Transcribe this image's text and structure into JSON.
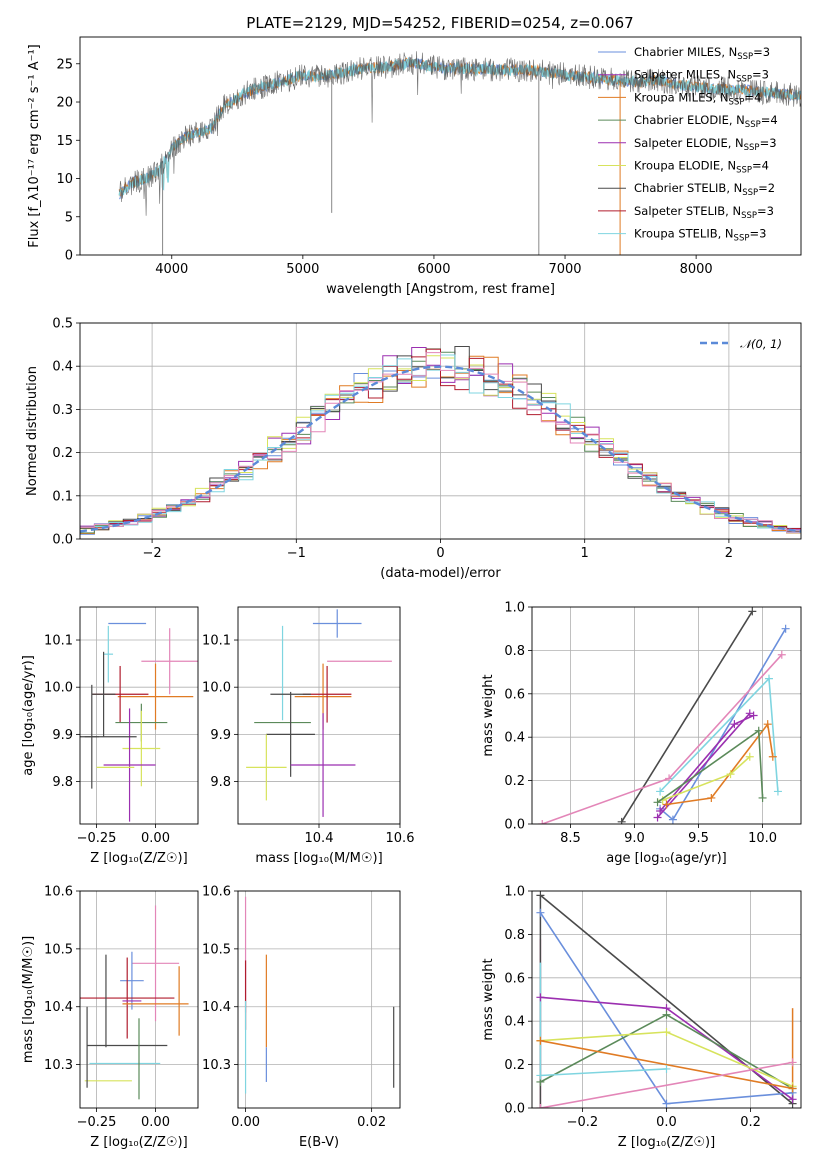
{
  "figure_title": "PLATE=2129, MJD=54252, FIBERID=0254, z=0.067",
  "colors": {
    "chabrier_miles": "#6a8fdc",
    "salpeter_miles": "#9b2fb0",
    "kroupa_miles": "#e07b24",
    "chabrier_elodie": "#5b8a5a",
    "salpeter_elodie": "#9b2fb0",
    "kroupa_elodie": "#d7e35c",
    "chabrier_stelib": "#4a4a4a",
    "salpeter_stelib": "#b01c2e",
    "kroupa_stelib": "#7fd5e0",
    "pink": "#e386b8",
    "normal_curve": "#5b8ad8"
  },
  "chart_data": [
    {
      "id": "spectrum",
      "type": "line",
      "title": "PLATE=2129, MJD=54252, FIBERID=0254, z=0.067",
      "xlabel": "wavelength [Angstrom, rest frame]",
      "ylabel": "Flux [f_λ10⁻¹⁷ erg cm⁻² s⁻¹ A⁻¹]",
      "xlim": [
        3300,
        8800
      ],
      "ylim": [
        0,
        28.5
      ],
      "xticks": [
        4000,
        5000,
        6000,
        7000,
        8000
      ],
      "yticks": [
        0,
        5,
        10,
        15,
        20,
        25
      ],
      "grid": false,
      "legend_position": "right",
      "legend": [
        "Chabrier MILES, N_SSP=3",
        "Salpeter MILES, N_SSP=3",
        "Kroupa MILES, N_SSP=4",
        "Chabrier ELODIE, N_SSP=4",
        "Salpeter ELODIE, N_SSP=3",
        "Kroupa ELODIE, N_SSP=4",
        "Chabrier STELIB, N_SSP=2",
        "Salpeter STELIB, N_SSP=3",
        "Kroupa STELIB, N_SSP=3"
      ],
      "data_envelope": {
        "x": [
          3600,
          3700,
          3800,
          3900,
          4000,
          4100,
          4200,
          4300,
          4400,
          4500,
          4600,
          4700,
          4800,
          4900,
          5000,
          5100,
          5200,
          5300,
          5400,
          5500,
          5600,
          5700,
          5800,
          5900,
          6000,
          6100,
          6200,
          6300,
          6400,
          6500,
          6600,
          6700,
          6800,
          6900,
          7000,
          7100,
          7200,
          7300,
          7400,
          7500,
          7600,
          7700,
          7800,
          7900,
          8000,
          8100,
          8200,
          8300,
          8400,
          8500,
          8600,
          8700,
          8800
        ],
        "y": [
          8,
          9.5,
          10,
          11,
          14,
          15.5,
          16,
          16.5,
          19.5,
          20.5,
          21.5,
          22,
          22.5,
          23,
          23.5,
          23.3,
          23.5,
          23.8,
          24.2,
          24.5,
          24.5,
          24.8,
          25.2,
          25,
          24.5,
          24.4,
          24.4,
          24.3,
          24.3,
          24.2,
          24.2,
          24.2,
          24,
          23.8,
          23.6,
          23.4,
          23.2,
          23,
          22.8,
          22.6,
          22.7,
          22.8,
          22.5,
          22.2,
          22,
          21.7,
          21.8,
          21.6,
          21.5,
          21.3,
          21.2,
          21.0,
          20.8
        ]
      },
      "observed_range": [
        3600,
        7420
      ]
    },
    {
      "id": "residuals",
      "type": "line",
      "xlabel": "(data-model)/error",
      "ylabel": "Normed distribution",
      "xlim": [
        -2.5,
        2.5
      ],
      "ylim": [
        0,
        0.5
      ],
      "xticks": [
        -2,
        -1,
        0,
        1,
        2
      ],
      "yticks": [
        0.0,
        0.1,
        0.2,
        0.3,
        0.4,
        0.5
      ],
      "grid": true,
      "legend_position": "top-right",
      "legend": [
        "𝒩(0, 1)"
      ]
    },
    {
      "id": "age_vs_Z",
      "type": "scatter",
      "xlabel": "Z [log₁₀(Z/Z☉)]",
      "ylabel": "age  [log₁₀(age/yr)]",
      "xlim": [
        -0.32,
        0.18
      ],
      "ylim": [
        9.71,
        10.17
      ],
      "xticks": [
        -0.25,
        0.0
      ],
      "yticks": [
        9.8,
        9.9,
        10.0,
        10.1
      ],
      "grid": true,
      "points": [
        {
          "series": "Chabrier MILES",
          "x": -0.12,
          "y": 10.135,
          "xerr": 0.08,
          "yerr": 0.0
        },
        {
          "series": "Kroupa MILES",
          "x": 0.0,
          "y": 9.98,
          "xerr": 0.16,
          "yerr": 0.07
        },
        {
          "series": "Pink",
          "x": 0.06,
          "y": 10.055,
          "xerr": 0.12,
          "yerr": 0.07
        },
        {
          "series": "Salpeter STELIB",
          "x": -0.15,
          "y": 9.985,
          "xerr": 0.12,
          "yerr": 0.06
        },
        {
          "series": "Kroupa STELIB",
          "x": -0.2,
          "y": 10.07,
          "xerr": 0.02,
          "yerr": 0.06
        },
        {
          "series": "Chabrier STELIB",
          "x": -0.22,
          "y": 9.985,
          "xerr": 0.05,
          "yerr": 0.09
        },
        {
          "series": "Chabrier ELODIE",
          "x": -0.06,
          "y": 9.925,
          "xerr": 0.11,
          "yerr": 0.04
        },
        {
          "series": "Kroupa ELODIE",
          "x": -0.06,
          "y": 9.87,
          "xerr": 0.08,
          "yerr": 0.08
        },
        {
          "series": "Salpeter ELODIE",
          "x": -0.11,
          "y": 9.835,
          "xerr": 0.11,
          "yerr": 0.12
        },
        {
          "series": "Chabrier STELIB 2",
          "x": -0.27,
          "y": 9.895,
          "xerr": 0.03,
          "yerr": 0.11
        },
        {
          "series": "Chabrier STELIB 3",
          "x": -0.24,
          "y": 9.895,
          "xerr": 0.16,
          "yerr": 0.0
        },
        {
          "series": "Kroupa ELODIE 2",
          "x": -0.17,
          "y": 9.83,
          "xerr": 0.08,
          "yerr": 0.0
        }
      ]
    },
    {
      "id": "age_vs_mass",
      "type": "scatter",
      "xlabel": "mass [log₁₀(M/M☉)]",
      "ylabel": "",
      "xlim": [
        10.2,
        10.6
      ],
      "ylim": [
        9.71,
        10.17
      ],
      "xticks": [
        10.4,
        10.6
      ],
      "yticks": [
        9.8,
        9.9,
        10.0,
        10.1
      ],
      "grid": true,
      "points": [
        {
          "series": "Chabrier MILES",
          "x": 10.445,
          "y": 10.135,
          "xerr": 0.06,
          "yerr": 0.03
        },
        {
          "series": "Kroupa STELIB",
          "x": 10.31,
          "y": 10.03,
          "xerr": 0.0,
          "yerr": 0.1
        },
        {
          "series": "Pink",
          "x": 10.5,
          "y": 10.055,
          "xerr": 0.08,
          "yerr": 0.0
        },
        {
          "series": "Kroupa MILES",
          "x": 10.41,
          "y": 9.98,
          "xerr": 0.07,
          "yerr": 0.07
        },
        {
          "series": "Salpeter STELIB",
          "x": 10.42,
          "y": 9.985,
          "xerr": 0.06,
          "yerr": 0.06
        },
        {
          "series": "Chabrier STELIB",
          "x": 10.33,
          "y": 9.985,
          "xerr": 0.05,
          "yerr": 0.0
        },
        {
          "series": "Chabrier ELODIE",
          "x": 10.31,
          "y": 9.925,
          "xerr": 0.07,
          "yerr": 0.0
        },
        {
          "series": "Chabrier STELIB 2",
          "x": 10.33,
          "y": 9.9,
          "xerr": 0.06,
          "yerr": 0.09
        },
        {
          "series": "Kroupa ELODIE",
          "x": 10.27,
          "y": 9.83,
          "xerr": 0.05,
          "yerr": 0.07
        },
        {
          "series": "Salpeter ELODIE",
          "x": 10.41,
          "y": 9.835,
          "xerr": 0.08,
          "yerr": 0.11
        }
      ]
    },
    {
      "id": "mass_weight_vs_age",
      "type": "line",
      "xlabel": "age  [log₁₀(age/yr)]",
      "ylabel": "mass weight",
      "xlim": [
        8.2,
        10.3
      ],
      "ylim": [
        0.0,
        1.0
      ],
      "xticks": [
        8.5,
        9.0,
        9.5,
        10.0
      ],
      "yticks": [
        0.0,
        0.2,
        0.4,
        0.6,
        0.8,
        1.0
      ],
      "grid": true,
      "series": [
        {
          "key": "chabrier_stelib",
          "x": [
            8.9,
            9.92
          ],
          "y": [
            0.01,
            0.98
          ]
        },
        {
          "key": "chabrier_miles",
          "x": [
            9.2,
            9.3,
            10.18
          ],
          "y": [
            0.07,
            0.02,
            0.9
          ]
        },
        {
          "key": "pink",
          "x": [
            8.28,
            9.27,
            10.15
          ],
          "y": [
            0.0,
            0.21,
            0.78
          ]
        },
        {
          "key": "kroupa_stelib",
          "x": [
            9.2,
            10.05,
            10.12
          ],
          "y": [
            0.15,
            0.67,
            0.15
          ]
        },
        {
          "key": "salpeter_miles",
          "x": [
            9.18,
            9.9
          ],
          "y": [
            0.03,
            0.51
          ]
        },
        {
          "key": "salpeter_elodie",
          "x": [
            9.2,
            9.78,
            9.93
          ],
          "y": [
            0.06,
            0.46,
            0.5
          ]
        },
        {
          "key": "kroupa_miles",
          "x": [
            9.25,
            9.6,
            10.04,
            10.08
          ],
          "y": [
            0.09,
            0.12,
            0.46,
            0.31
          ]
        },
        {
          "key": "kroupa_elodie",
          "x": [
            9.22,
            9.75,
            9.9
          ],
          "y": [
            0.11,
            0.23,
            0.31
          ]
        },
        {
          "key": "chabrier_elodie",
          "x": [
            9.18,
            9.97,
            10.0
          ],
          "y": [
            0.1,
            0.43,
            0.12
          ]
        }
      ]
    },
    {
      "id": "mass_vs_Z",
      "type": "scatter",
      "xlabel": "Z [log₁₀(Z/Z☉)]",
      "ylabel": "mass [log₁₀(M/M☉)]",
      "xlim": [
        -0.32,
        0.18
      ],
      "ylim": [
        10.225,
        10.6
      ],
      "xticks": [
        -0.25,
        0.0
      ],
      "yticks": [
        10.3,
        10.4,
        10.5,
        10.6
      ],
      "grid": true,
      "points": [
        {
          "series": "Pink",
          "x": 0.0,
          "y": 10.475,
          "xerr": 0.1,
          "yerr": 0.1
        },
        {
          "series": "Chabrier MILES",
          "x": -0.1,
          "y": 10.445,
          "xerr": 0.05,
          "yerr": 0.05
        },
        {
          "series": "Kroupa MILES",
          "x": 0.1,
          "y": 10.41,
          "xerr": 0.0,
          "yerr": 0.06
        },
        {
          "series": "Salpeter STELIB",
          "x": -0.12,
          "y": 10.415,
          "xerr": 0.2,
          "yerr": 0.07
        },
        {
          "series": "Kroupa MILES 2",
          "x": 0.0,
          "y": 10.405,
          "xerr": 0.14,
          "yerr": 0.0
        },
        {
          "series": "Chabrier STELIB",
          "x": -0.21,
          "y": 10.41,
          "xerr": 0.0,
          "yerr": 0.08
        },
        {
          "series": "Salpeter ELODIE",
          "x": -0.1,
          "y": 10.41,
          "xerr": 0.04,
          "yerr": 0.0
        },
        {
          "series": "Chabrier STELIB 2",
          "x": -0.12,
          "y": 10.333,
          "xerr": 0.17,
          "yerr": 0.0
        },
        {
          "series": "Kroupa STELIB",
          "x": -0.13,
          "y": 10.302,
          "xerr": 0.15,
          "yerr": 0.0
        },
        {
          "series": "Chabrier ELODIE",
          "x": -0.07,
          "y": 10.31,
          "xerr": 0.0,
          "yerr": 0.07
        },
        {
          "series": "Kroupa ELODIE",
          "x": -0.2,
          "y": 10.272,
          "xerr": 0.1,
          "yerr": 0.0
        },
        {
          "series": "Chabrier STELIB 3",
          "x": -0.29,
          "y": 10.33,
          "xerr": 0.0,
          "yerr": 0.07
        }
      ]
    },
    {
      "id": "mass_vs_ebv",
      "type": "scatter",
      "xlabel": "E(B-V)",
      "ylabel": "",
      "xlim": [
        -0.0012,
        0.0245
      ],
      "ylim": [
        10.225,
        10.6
      ],
      "xticks": [
        0.0,
        0.02
      ],
      "yticks": [
        10.3,
        10.4,
        10.5,
        10.6
      ],
      "grid": true,
      "points": [
        {
          "series": "Pink",
          "x": 0.0,
          "y": 10.49,
          "yerr": 0.1
        },
        {
          "series": "Salpeter STELIB",
          "x": 0.0,
          "y": 10.42,
          "yerr": 0.06
        },
        {
          "series": "Kroupa STELIB",
          "x": 0.0,
          "y": 10.33,
          "yerr": 0.08
        },
        {
          "series": "Kroupa MILES",
          "x": 0.0033,
          "y": 10.41,
          "yerr": 0.08
        },
        {
          "series": "Chabrier MILES",
          "x": 0.0033,
          "y": 10.3,
          "yerr": 0.03
        },
        {
          "series": "Chabrier STELIB",
          "x": 0.0235,
          "y": 10.33,
          "yerr": 0.07
        }
      ]
    },
    {
      "id": "mass_weight_vs_Z",
      "type": "line",
      "xlabel": "Z [log₁₀(Z/Z☉)]",
      "ylabel": "mass weight",
      "xlim": [
        -0.32,
        0.32
      ],
      "ylim": [
        0.0,
        1.0
      ],
      "xticks": [
        -0.2,
        0.0,
        0.2
      ],
      "yticks": [
        0.0,
        0.2,
        0.4,
        0.6,
        0.8,
        1.0
      ],
      "grid": true,
      "series": [
        {
          "key": "chabrier_stelib",
          "x": [
            -0.3,
            0.3
          ],
          "y": [
            0.98,
            0.02
          ]
        },
        {
          "key": "chabrier_miles",
          "x": [
            -0.3,
            0.0,
            0.3
          ],
          "y": [
            0.9,
            0.02,
            0.07
          ]
        },
        {
          "key": "salpeter_miles",
          "x": [
            -0.3,
            0.0,
            0.3
          ],
          "y": [
            0.51,
            0.46,
            0.04
          ]
        },
        {
          "key": "chabrier_elodie",
          "x": [
            -0.3,
            0.0,
            0.3
          ],
          "y": [
            0.12,
            0.43,
            0.09
          ]
        },
        {
          "key": "kroupa_elodie",
          "x": [
            -0.3,
            0.0,
            0.3
          ],
          "y": [
            0.31,
            0.35,
            0.1
          ]
        },
        {
          "key": "kroupa_miles",
          "x": [
            -0.3,
            0.3
          ],
          "y": [
            0.31,
            0.09
          ]
        },
        {
          "key": "pink",
          "x": [
            -0.3,
            0.3
          ],
          "y": [
            0.0,
            0.21
          ]
        },
        {
          "key": "kroupa_stelib",
          "x": [
            -0.3,
            0.0
          ],
          "y": [
            0.15,
            0.18
          ]
        }
      ],
      "vertical_ranges": [
        {
          "key": "pink",
          "x": -0.3,
          "y": [
            0.0,
            0.78
          ]
        },
        {
          "key": "chabrier_stelib",
          "x": -0.3,
          "y": [
            0.0,
            0.98
          ]
        },
        {
          "key": "kroupa_stelib",
          "x": -0.3,
          "y": [
            0.15,
            0.67
          ]
        },
        {
          "key": "kroupa_miles",
          "x": 0.3,
          "y": [
            0.09,
            0.46
          ]
        },
        {
          "key": "chabrier_stelib",
          "x": 0.3,
          "y": [
            0.02,
            0.1
          ]
        }
      ]
    }
  ]
}
